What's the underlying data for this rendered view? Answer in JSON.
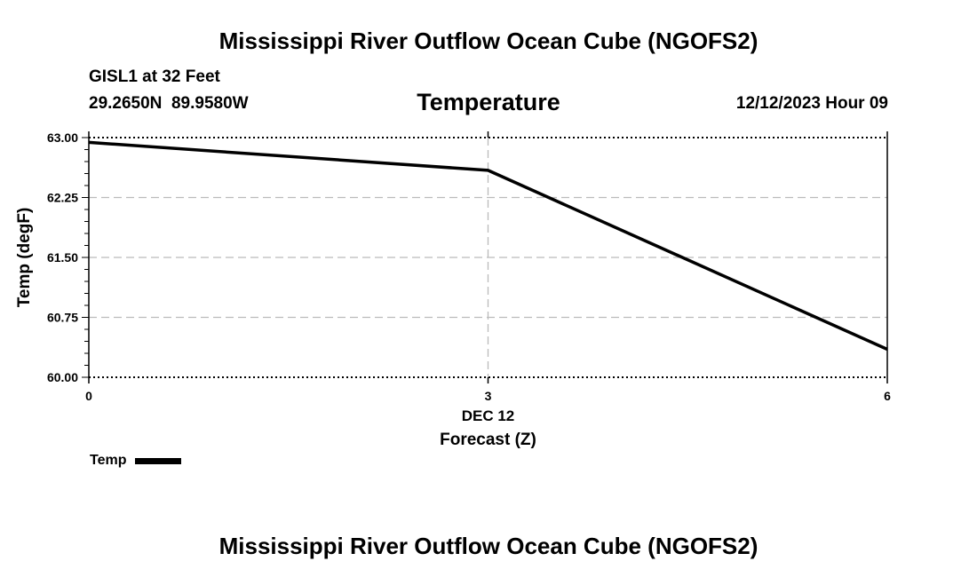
{
  "header": {
    "title": "Mississippi River Outflow Ocean Cube (NGOFS2)",
    "station": "GISL1 at 32 Feet",
    "coordinates": "29.2650N  89.9580W",
    "variable": "Temperature",
    "datetime": "12/12/2023 Hour 09"
  },
  "footer": {
    "title": "Mississippi River Outflow Ocean Cube (NGOFS2)"
  },
  "legend": {
    "label": "Temp"
  },
  "chart_data": {
    "type": "line",
    "ylabel": "Temp (degF)",
    "xlabel": "Forecast (Z)",
    "x_date_label": "DEC 12",
    "xlim": [
      0,
      6
    ],
    "ylim": [
      60.0,
      63.0
    ],
    "x_ticks": [
      "0",
      "3",
      "6"
    ],
    "y_ticks": [
      "63.00",
      "62.25",
      "61.50",
      "60.75",
      "60.00"
    ],
    "grid": true,
    "legend_position": "bottom-left",
    "colors": {
      "line": "#000000",
      "grid": "#bbbbbb"
    },
    "series": [
      {
        "name": "Temp",
        "x": [
          0,
          3,
          6
        ],
        "y": [
          62.94,
          62.59,
          60.35
        ]
      }
    ]
  }
}
